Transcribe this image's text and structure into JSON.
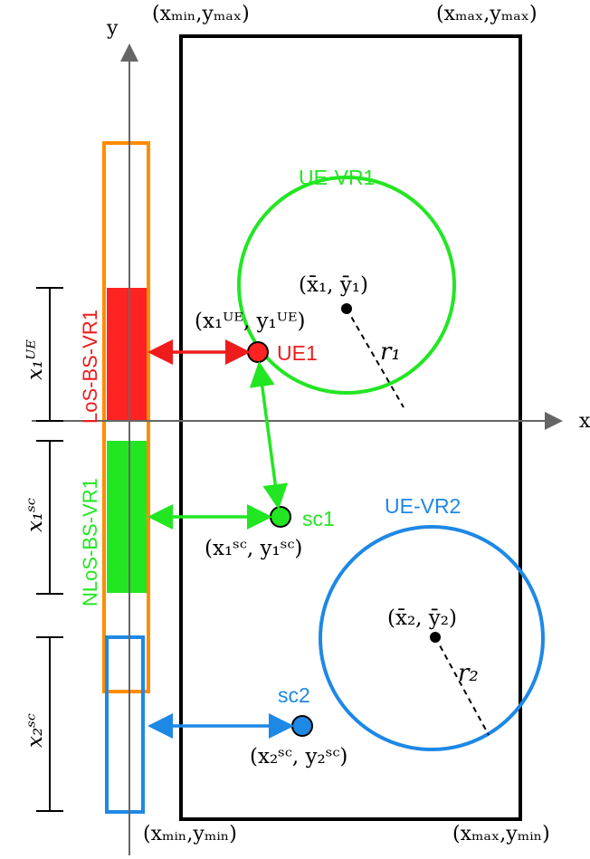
{
  "axes": {
    "x_label": "x",
    "y_label": "y"
  },
  "corners": {
    "top_left": "(xₘᵢₙ,yₘₐₓ)",
    "top_right": "(xₘₐₓ,yₘₐₓ)",
    "bottom_left": "(xₘᵢₙ,yₘᵢₙ)",
    "bottom_right": "(xₘₐₓ,yₘᵢₙ)"
  },
  "regions": {
    "vr1": {
      "label": "UE-VR1",
      "center": "(x̄₁, ȳ₁)",
      "radius": "r₁",
      "color": "#22e622"
    },
    "vr2": {
      "label": "UE-VR2",
      "center": "(x̄₂, ȳ₂)",
      "radius": "r₂",
      "color": "#1e88e5"
    }
  },
  "points": {
    "ue1": {
      "label": "UE1",
      "coord": "(x₁ᵁᴱ, y₁ᵁᴱ)",
      "color": "#ff2222"
    },
    "sc1": {
      "label": "sc1",
      "coord": "(x₁ˢᶜ, y₁ˢᶜ)",
      "color": "#22e622"
    },
    "sc2": {
      "label": "sc2",
      "coord": "(x₂ˢᶜ, y₂ˢᶜ)",
      "color": "#1e88e5"
    }
  },
  "strip": {
    "los_label": "LoS-BS-VR1",
    "nlos_label": "NLoS-BS-VR1",
    "los_color": "#ff2222",
    "nlos_color": "#22e622",
    "outline_color": "#ff8c00",
    "sc2_outline_color": "#1e88e5"
  },
  "dimensions": {
    "ue": "x₁ᵁᴱ",
    "sc1": "x₁ˢᶜ",
    "sc2": "x₂ˢᶜ"
  }
}
